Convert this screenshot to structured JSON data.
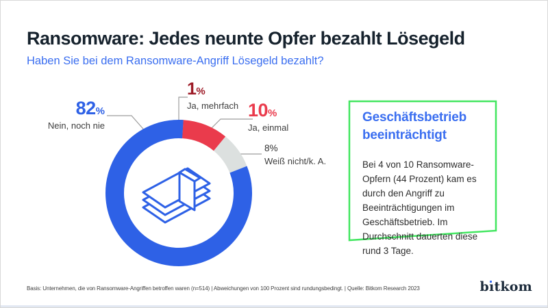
{
  "header": {
    "title": "Ransomware: Jedes neunte Opfer bezahlt Lösegeld",
    "subtitle": "Haben Sie bei dem Ransomware-Angriff Lösegeld bezahlt?"
  },
  "ui": {
    "percent_sign": "%"
  },
  "chart_data": {
    "type": "pie",
    "variant": "donut",
    "title": "Haben Sie bei dem Ransomware-Angriff Lösegeld bezahlt?",
    "unit": "%",
    "start_angle_deg": 0,
    "direction": "clockwise",
    "center_icon": "money-stack-icon",
    "segments": [
      {
        "name": "Ja, mehrfach",
        "value": 1,
        "color": "#9d1b27"
      },
      {
        "name": "Ja, einmal",
        "value": 10,
        "color": "#ea3b4c"
      },
      {
        "name": "Weiß nicht/k. A.",
        "value": 8,
        "color": "#dce0df"
      },
      {
        "name": "Nein, noch nie",
        "value": 82,
        "color": "#2e61e6"
      }
    ]
  },
  "infobox": {
    "title": "Geschäftsbetrieb beeinträchtigt",
    "body": "Bei 4 von 10 Ransomware-Opfern (44 Prozent) kam es durch den Angriff zu Beeinträchtigungen im Geschäftsbetrieb. Im Durchschnitt dauerten diese rund 3 Tage.",
    "border_color": "#41e65f"
  },
  "footer": {
    "source": "Basis: Unternehmen, die von Ransomware-Angriffen betroffen waren (n=514) | Abweichungen von 100 Prozent sind rundungsbedingt. | Quelle: Bitkom Research 2023"
  },
  "logo": {
    "text": "bitkom",
    "parts": {
      "left": "b",
      "stem": "ı",
      "right": "tkom"
    }
  },
  "colors": {
    "accent_blue": "#2e61e6",
    "text_blue": "#3a6ef0",
    "red": "#ea3b4c",
    "dark_red": "#9d1b27",
    "light_gray": "#dce0df",
    "green": "#41e65f",
    "leader_gray": "#9c9c9c"
  }
}
